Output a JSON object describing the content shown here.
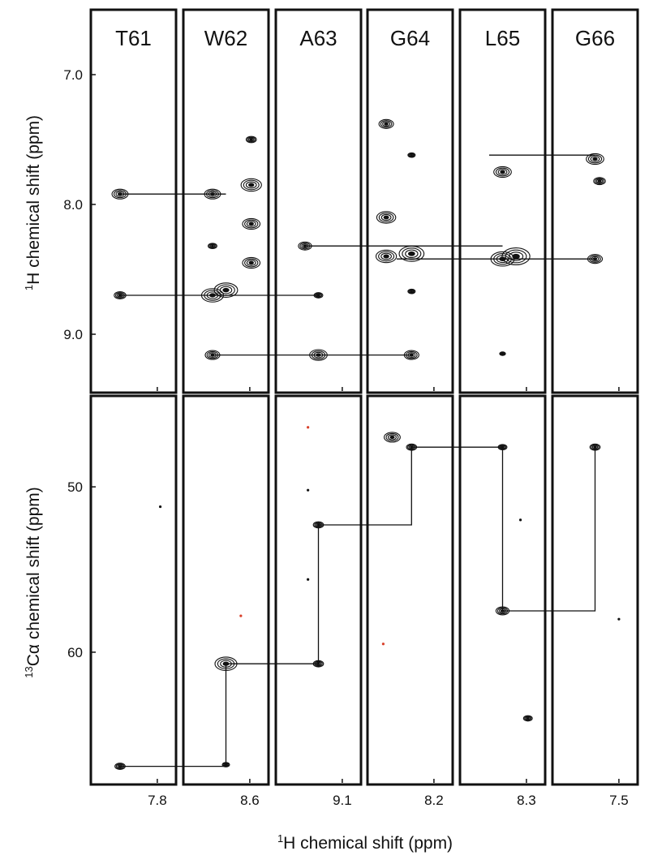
{
  "chart_data": {
    "type": "scatter",
    "description_kind": "strip plot of NMR spectra",
    "strips": [
      {
        "label": "T61",
        "x_tick": "7.8"
      },
      {
        "label": "W62",
        "x_tick": "8.6"
      },
      {
        "label": "A63",
        "x_tick": "9.1"
      },
      {
        "label": "G64",
        "x_tick": "8.2"
      },
      {
        "label": "L65",
        "x_tick": "8.3"
      },
      {
        "label": "G66",
        "x_tick": "7.5"
      }
    ],
    "top_panel": {
      "ylabel_sup": "1",
      "ylabel": "H chemical shift (ppm)",
      "ylim": [
        9.45,
        6.5
      ],
      "yticks": [
        "7.0",
        "8.0",
        "9.0"
      ],
      "yticks_values": [
        7.0,
        8.0,
        9.0
      ],
      "peaks": [
        {
          "strip": 0,
          "dx": -0.45,
          "y": 7.92,
          "size": 1.1
        },
        {
          "strip": 0,
          "dx": -0.45,
          "y": 8.7,
          "size": 0.8
        },
        {
          "strip": 1,
          "dx": -0.45,
          "y": 7.92,
          "size": 1.1
        },
        {
          "strip": 1,
          "dx": -0.45,
          "y": 8.32,
          "size": 0.6
        },
        {
          "strip": 1,
          "dx": -0.45,
          "y": 8.7,
          "size": 1.5
        },
        {
          "strip": 1,
          "dx": 0.0,
          "y": 8.66,
          "size": 1.6
        },
        {
          "strip": 1,
          "dx": -0.45,
          "y": 9.16,
          "size": 1.0
        },
        {
          "strip": 1,
          "dx": 0.85,
          "y": 7.85,
          "size": 1.4
        },
        {
          "strip": 1,
          "dx": 0.85,
          "y": 8.15,
          "size": 1.2
        },
        {
          "strip": 1,
          "dx": 0.85,
          "y": 8.45,
          "size": 1.2
        },
        {
          "strip": 1,
          "dx": 0.85,
          "y": 7.5,
          "size": 0.7
        },
        {
          "strip": 2,
          "dx": -0.45,
          "y": 8.32,
          "size": 0.9
        },
        {
          "strip": 2,
          "dx": 0.0,
          "y": 8.7,
          "size": 0.6
        },
        {
          "strip": 2,
          "dx": 0.0,
          "y": 9.16,
          "size": 1.2
        },
        {
          "strip": 3,
          "dx": -0.8,
          "y": 7.38,
          "size": 1.0
        },
        {
          "strip": 3,
          "dx": -0.8,
          "y": 8.1,
          "size": 1.3
        },
        {
          "strip": 3,
          "dx": -0.8,
          "y": 8.4,
          "size": 1.4
        },
        {
          "strip": 3,
          "dx": 0.05,
          "y": 8.38,
          "size": 1.7
        },
        {
          "strip": 3,
          "dx": 0.05,
          "y": 7.62,
          "size": 0.5
        },
        {
          "strip": 3,
          "dx": 0.05,
          "y": 8.67,
          "size": 0.5
        },
        {
          "strip": 3,
          "dx": 0.05,
          "y": 9.16,
          "size": 1.0
        },
        {
          "strip": 4,
          "dx": 0.0,
          "y": 7.75,
          "size": 1.2
        },
        {
          "strip": 4,
          "dx": 0.0,
          "y": 8.42,
          "size": 1.6
        },
        {
          "strip": 4,
          "dx": 0.45,
          "y": 8.4,
          "size": 1.9
        },
        {
          "strip": 4,
          "dx": 0.0,
          "y": 9.15,
          "size": 0.4
        },
        {
          "strip": 5,
          "dx": 0.0,
          "y": 7.65,
          "size": 1.2
        },
        {
          "strip": 5,
          "dx": 0.15,
          "y": 7.82,
          "size": 0.8
        },
        {
          "strip": 5,
          "dx": 0.0,
          "y": 8.42,
          "size": 1.0
        }
      ],
      "connections": [
        {
          "strip_from": 0,
          "strip_to": 1,
          "y": 7.92
        },
        {
          "strip_from": 0,
          "strip_to": 2,
          "y": 8.7
        },
        {
          "strip_from": 1,
          "strip_to": 3,
          "y": 9.16
        },
        {
          "strip_from": 2,
          "strip_to": 4,
          "y": 8.32
        },
        {
          "strip_from": 3,
          "strip_to": 5,
          "y": 8.42
        },
        {
          "strip_from": 4,
          "strip_to": 5,
          "y": 7.62
        }
      ]
    },
    "bottom_panel": {
      "ylabel_sup": "13",
      "ylabel": "C",
      "ylabel_greek": "α",
      "ylabel_rest": " chemical shift (ppm)",
      "ylim": [
        44.5,
        68.0
      ],
      "yticks": [
        "50",
        "60"
      ],
      "yticks_values": [
        50,
        60
      ],
      "peaks": [
        {
          "strip": 0,
          "dx": -0.45,
          "y": 66.9,
          "size": 0.7
        },
        {
          "strip": 1,
          "dx": 0.0,
          "y": 60.7,
          "size": 1.5
        },
        {
          "strip": 1,
          "dx": 0.0,
          "y": 66.8,
          "size": 0.5
        },
        {
          "strip": 2,
          "dx": 0.0,
          "y": 60.7,
          "size": 0.7
        },
        {
          "strip": 2,
          "dx": 0.0,
          "y": 52.3,
          "size": 0.7
        },
        {
          "strip": 3,
          "dx": -0.6,
          "y": 47.0,
          "size": 1.1
        },
        {
          "strip": 3,
          "dx": 0.05,
          "y": 47.6,
          "size": 0.7
        },
        {
          "strip": 4,
          "dx": 0.0,
          "y": 47.6,
          "size": 0.6
        },
        {
          "strip": 4,
          "dx": 0.0,
          "y": 57.5,
          "size": 0.9
        },
        {
          "strip": 4,
          "dx": 0.85,
          "y": 64.0,
          "size": 0.6
        },
        {
          "strip": 5,
          "dx": 0.0,
          "y": 47.6,
          "size": 0.7
        }
      ],
      "connections": [
        {
          "points": [
            {
              "strip": 0,
              "dx": -0.45,
              "y": 66.9
            },
            {
              "strip": 1,
              "dx": 0.0,
              "y": 66.9
            },
            {
              "strip": 1,
              "dx": 0.0,
              "y": 60.7
            }
          ]
        },
        {
          "points": [
            {
              "strip": 1,
              "dx": 0.0,
              "y": 60.7
            },
            {
              "strip": 2,
              "dx": 0.0,
              "y": 60.7
            },
            {
              "strip": 2,
              "dx": 0.0,
              "y": 52.3
            }
          ]
        },
        {
          "points": [
            {
              "strip": 2,
              "dx": 0.0,
              "y": 52.3
            },
            {
              "strip": 3,
              "dx": 0.05,
              "y": 52.3
            },
            {
              "strip": 3,
              "dx": 0.05,
              "y": 47.6
            }
          ]
        },
        {
          "points": [
            {
              "strip": 3,
              "dx": 0.05,
              "y": 47.6
            },
            {
              "strip": 4,
              "dx": 0.0,
              "y": 47.6
            },
            {
              "strip": 4,
              "dx": 0.0,
              "y": 57.5
            }
          ]
        },
        {
          "points": [
            {
              "strip": 4,
              "dx": 0.0,
              "y": 57.5
            },
            {
              "strip": 5,
              "dx": 0.0,
              "y": 57.5
            },
            {
              "strip": 5,
              "dx": 0.0,
              "y": 47.6
            }
          ]
        }
      ]
    },
    "xlabel_sup": "1",
    "xlabel": "H chemical shift (ppm)",
    "colors": {
      "peak": "#111111",
      "frame": "#111111",
      "noise_accent": "#d9412b"
    }
  }
}
